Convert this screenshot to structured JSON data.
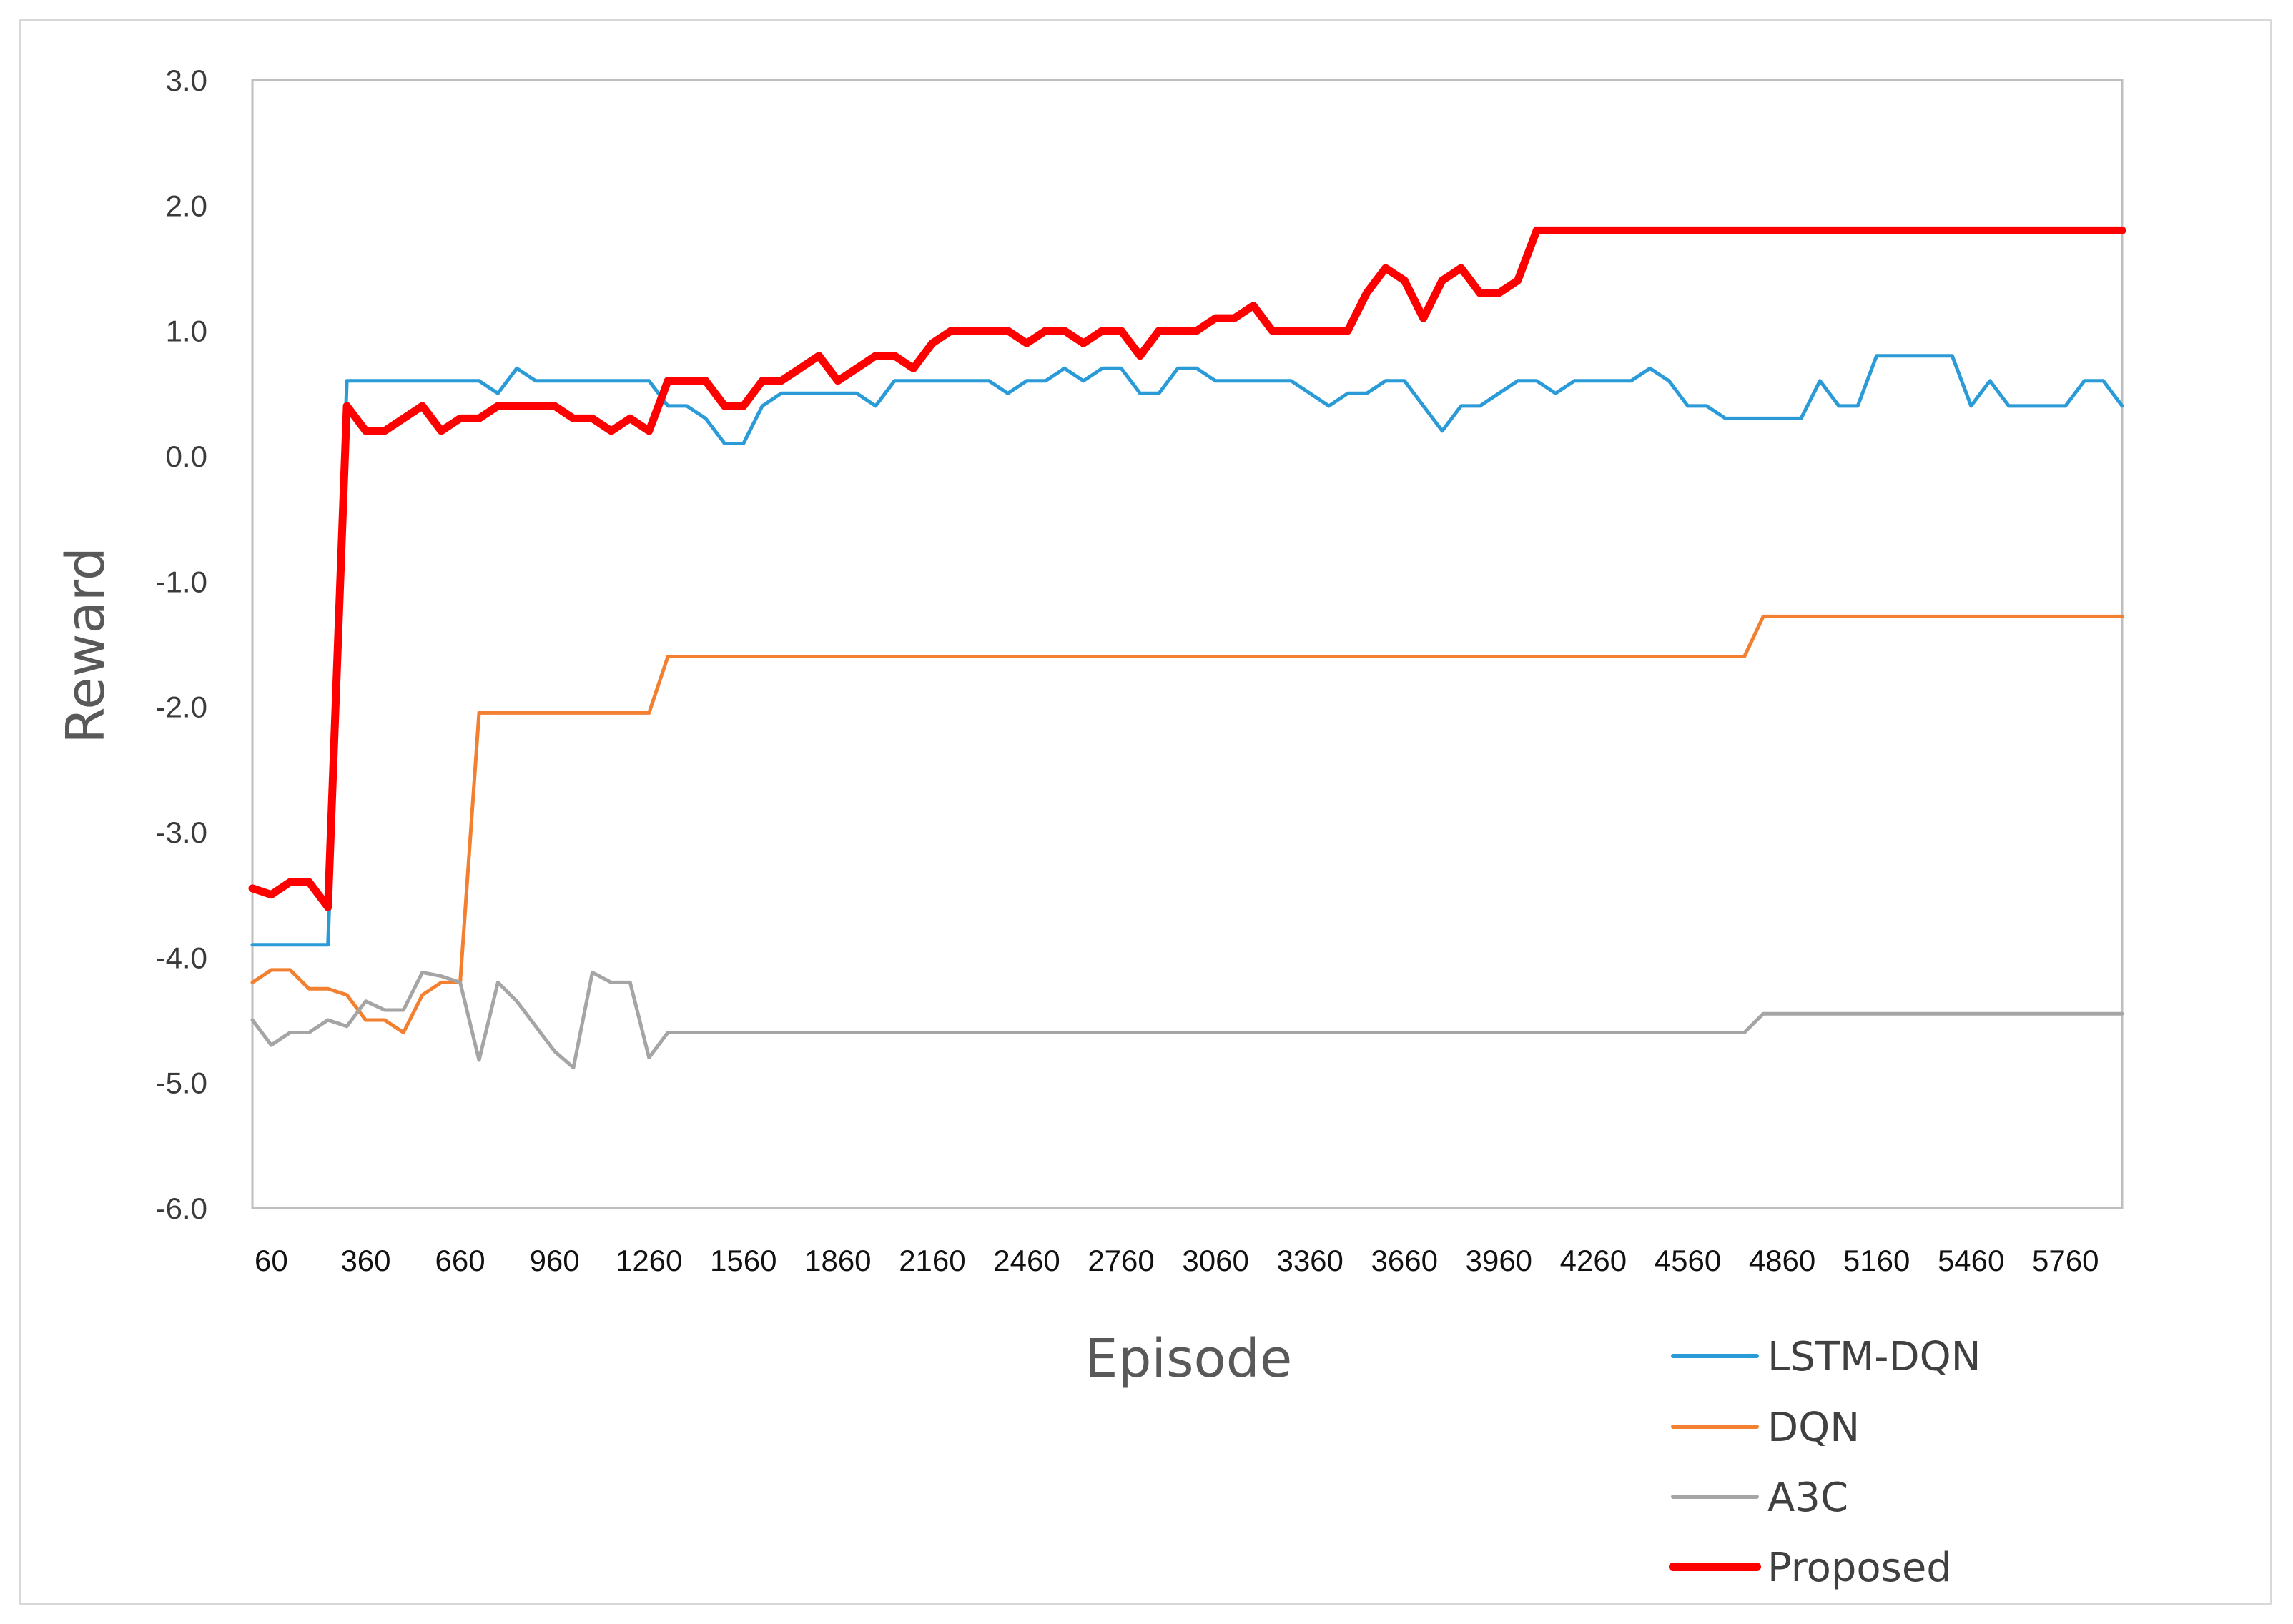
{
  "chart_data": {
    "type": "line",
    "title": "",
    "xlabel": "Episode",
    "ylabel": "Reward",
    "ylim": [
      -6.0,
      3.0
    ],
    "y_ticks": [
      "3.0",
      "2.0",
      "1.0",
      "0.0",
      "-1.0",
      "-2.0",
      "-3.0",
      "-4.0",
      "-5.0",
      "-6.0"
    ],
    "x_tick_labels": [
      "60",
      "360",
      "660",
      "960",
      "1260",
      "1560",
      "1860",
      "2160",
      "2460",
      "2760",
      "3060",
      "3360",
      "3660",
      "3960",
      "4260",
      "4560",
      "4860",
      "5160",
      "5460",
      "5760"
    ],
    "x_start": 0,
    "x_step": 60,
    "x_end": 5940,
    "grid": false,
    "legend_position": "bottom-right",
    "series": [
      {
        "name": "LSTM-DQN",
        "color": "#2b9bd8",
        "points": [
          [
            0,
            -3.9
          ],
          [
            240,
            -3.9
          ],
          [
            300,
            0.6
          ],
          [
            720,
            0.6
          ],
          [
            780,
            0.5
          ],
          [
            840,
            0.7
          ],
          [
            900,
            0.6
          ],
          [
            1260,
            0.6
          ],
          [
            1320,
            0.4
          ],
          [
            1380,
            0.4
          ],
          [
            1440,
            0.3
          ],
          [
            1500,
            0.1
          ],
          [
            1560,
            0.1
          ],
          [
            1620,
            0.4
          ],
          [
            1680,
            0.5
          ],
          [
            1920,
            0.5
          ],
          [
            1980,
            0.4
          ],
          [
            2040,
            0.6
          ],
          [
            2340,
            0.6
          ],
          [
            2400,
            0.5
          ],
          [
            2460,
            0.6
          ],
          [
            2520,
            0.6
          ],
          [
            2580,
            0.7
          ],
          [
            2640,
            0.6
          ],
          [
            2700,
            0.7
          ],
          [
            2760,
            0.7
          ],
          [
            2820,
            0.5
          ],
          [
            2880,
            0.5
          ],
          [
            2940,
            0.7
          ],
          [
            3000,
            0.7
          ],
          [
            3060,
            0.6
          ],
          [
            3300,
            0.6
          ],
          [
            3360,
            0.5
          ],
          [
            3420,
            0.4
          ],
          [
            3480,
            0.5
          ],
          [
            3540,
            0.5
          ],
          [
            3600,
            0.6
          ],
          [
            3660,
            0.6
          ],
          [
            3720,
            0.4
          ],
          [
            3780,
            0.2
          ],
          [
            3840,
            0.4
          ],
          [
            3900,
            0.4
          ],
          [
            3960,
            0.5
          ],
          [
            4020,
            0.6
          ],
          [
            4080,
            0.6
          ],
          [
            4140,
            0.5
          ],
          [
            4200,
            0.6
          ],
          [
            4380,
            0.6
          ],
          [
            4440,
            0.7
          ],
          [
            4500,
            0.6
          ],
          [
            4560,
            0.4
          ],
          [
            4620,
            0.4
          ],
          [
            4680,
            0.3
          ],
          [
            4920,
            0.3
          ],
          [
            4980,
            0.6
          ],
          [
            5040,
            0.4
          ],
          [
            5100,
            0.4
          ],
          [
            5160,
            0.8
          ],
          [
            5400,
            0.8
          ],
          [
            5460,
            0.4
          ],
          [
            5520,
            0.6
          ],
          [
            5580,
            0.4
          ],
          [
            5760,
            0.4
          ],
          [
            5820,
            0.6
          ],
          [
            5880,
            0.6
          ],
          [
            5940,
            0.4
          ]
        ]
      },
      {
        "name": "DQN",
        "color": "#f28030",
        "points": [
          [
            0,
            -4.2
          ],
          [
            60,
            -4.1
          ],
          [
            120,
            -4.1
          ],
          [
            180,
            -4.25
          ],
          [
            240,
            -4.25
          ],
          [
            300,
            -4.3
          ],
          [
            360,
            -4.5
          ],
          [
            420,
            -4.5
          ],
          [
            480,
            -4.6
          ],
          [
            540,
            -4.3
          ],
          [
            600,
            -4.2
          ],
          [
            660,
            -4.2
          ],
          [
            720,
            -2.05
          ],
          [
            1260,
            -2.05
          ],
          [
            1320,
            -1.6
          ],
          [
            4740,
            -1.6
          ],
          [
            4800,
            -1.28
          ],
          [
            5940,
            -1.28
          ]
        ]
      },
      {
        "name": "A3C",
        "color": "#a5a5a5",
        "points": [
          [
            0,
            -4.5
          ],
          [
            60,
            -4.7
          ],
          [
            120,
            -4.6
          ],
          [
            180,
            -4.6
          ],
          [
            240,
            -4.5
          ],
          [
            300,
            -4.55
          ],
          [
            360,
            -4.35
          ],
          [
            420,
            -4.42
          ],
          [
            480,
            -4.42
          ],
          [
            540,
            -4.12
          ],
          [
            600,
            -4.15
          ],
          [
            660,
            -4.2
          ],
          [
            720,
            -4.82
          ],
          [
            780,
            -4.2
          ],
          [
            840,
            -4.35
          ],
          [
            900,
            -4.55
          ],
          [
            960,
            -4.75
          ],
          [
            1020,
            -4.88
          ],
          [
            1080,
            -4.12
          ],
          [
            1140,
            -4.2
          ],
          [
            1200,
            -4.2
          ],
          [
            1260,
            -4.8
          ],
          [
            1320,
            -4.6
          ],
          [
            4740,
            -4.6
          ],
          [
            4800,
            -4.45
          ],
          [
            5940,
            -4.45
          ]
        ]
      },
      {
        "name": "Proposed",
        "color": "#ff0000",
        "points": [
          [
            0,
            -3.45
          ],
          [
            60,
            -3.5
          ],
          [
            120,
            -3.4
          ],
          [
            180,
            -3.4
          ],
          [
            240,
            -3.6
          ],
          [
            300,
            0.4
          ],
          [
            360,
            0.2
          ],
          [
            420,
            0.2
          ],
          [
            480,
            0.3
          ],
          [
            540,
            0.4
          ],
          [
            600,
            0.2
          ],
          [
            660,
            0.3
          ],
          [
            720,
            0.3
          ],
          [
            780,
            0.4
          ],
          [
            960,
            0.4
          ],
          [
            1020,
            0.3
          ],
          [
            1080,
            0.3
          ],
          [
            1140,
            0.2
          ],
          [
            1200,
            0.3
          ],
          [
            1260,
            0.2
          ],
          [
            1320,
            0.6
          ],
          [
            1440,
            0.6
          ],
          [
            1500,
            0.4
          ],
          [
            1560,
            0.4
          ],
          [
            1620,
            0.6
          ],
          [
            1680,
            0.6
          ],
          [
            1740,
            0.7
          ],
          [
            1800,
            0.8
          ],
          [
            1860,
            0.6
          ],
          [
            1920,
            0.7
          ],
          [
            1980,
            0.8
          ],
          [
            2040,
            0.8
          ],
          [
            2100,
            0.7
          ],
          [
            2160,
            0.9
          ],
          [
            2220,
            1.0
          ],
          [
            2400,
            1.0
          ],
          [
            2460,
            0.9
          ],
          [
            2520,
            1.0
          ],
          [
            2580,
            1.0
          ],
          [
            2640,
            0.9
          ],
          [
            2700,
            1.0
          ],
          [
            2760,
            1.0
          ],
          [
            2820,
            0.8
          ],
          [
            2880,
            1.0
          ],
          [
            3000,
            1.0
          ],
          [
            3060,
            1.1
          ],
          [
            3120,
            1.1
          ],
          [
            3180,
            1.2
          ],
          [
            3240,
            1.0
          ],
          [
            3480,
            1.0
          ],
          [
            3540,
            1.3
          ],
          [
            3600,
            1.5
          ],
          [
            3660,
            1.4
          ],
          [
            3720,
            1.1
          ],
          [
            3780,
            1.4
          ],
          [
            3840,
            1.5
          ],
          [
            3900,
            1.3
          ],
          [
            3960,
            1.3
          ],
          [
            4020,
            1.4
          ],
          [
            4080,
            1.8
          ],
          [
            5940,
            1.8
          ]
        ]
      }
    ]
  }
}
